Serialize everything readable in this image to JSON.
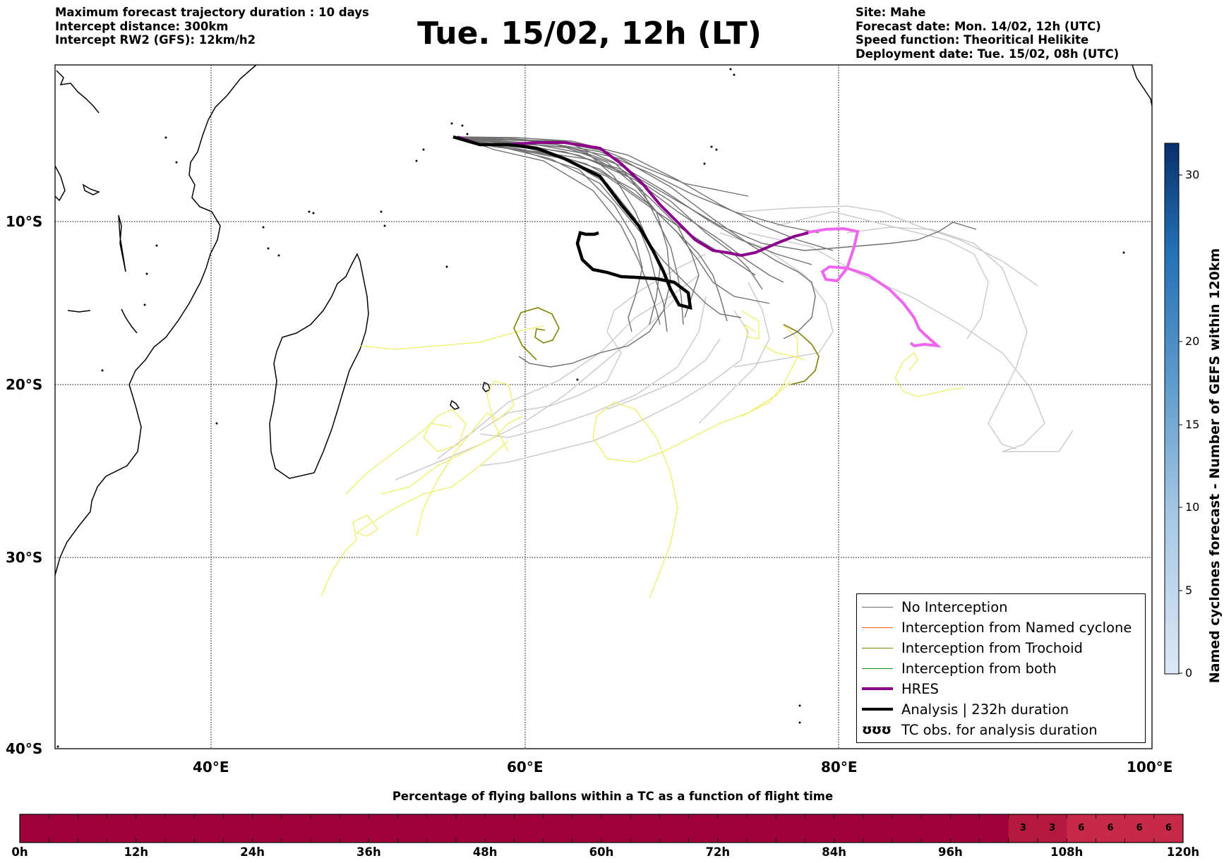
{
  "info_left": [
    "Maximum forecast trajectory duration : 10 days",
    "Intercept distance: 300km",
    "Intercept RW2 (GFS):  12km/h2"
  ],
  "title": "Tue. 15/02, 12h (LT)",
  "info_right": [
    "Site: Mahe",
    "Forecast date: Mon. 14/02, 12h (UTC)",
    "Speed function: Theoritical Helikite",
    "Deployment date: Tue. 15/02, 08h (UTC)"
  ],
  "map": {
    "lat_labels": [
      "10°S",
      "20°S",
      "30°S",
      "40°S"
    ],
    "lon_labels": [
      "40°E",
      "60°E",
      "80°E",
      "100°E"
    ],
    "lon_range": [
      30,
      100
    ],
    "lat_range": [
      -40,
      3
    ],
    "colors": {
      "no_interception": "#707070",
      "named": "#ff5a1f",
      "trochoid": "#808000",
      "both": "#228b22",
      "hres": "#8b008b",
      "hres_ext": "#ee66ee",
      "analysis": "#000000",
      "trajectory_light": "#cccccc",
      "yellow": "#eeee66"
    }
  },
  "legend": [
    {
      "label": "No Interception",
      "color": "#707070",
      "style": "thin"
    },
    {
      "label": "Interception from Named cyclone",
      "color": "#ff5a1f",
      "style": "thin"
    },
    {
      "label": "Interception from Trochoid",
      "color": "#808000",
      "style": "thin"
    },
    {
      "label": "Interception from both",
      "color": "#228b22",
      "style": "thin"
    },
    {
      "label": "HRES",
      "color": "#8b008b",
      "style": "thick"
    },
    {
      "label": "Analysis | 232h duration",
      "color": "#000000",
      "style": "thick"
    },
    {
      "label": "TC obs. for analysis duration",
      "symbol": "ʊʊʊ",
      "style": "symbol"
    }
  ],
  "colorbar": {
    "title": "Named cyclones forecast - Number of GEFS within 120km",
    "tick_labels": [
      "30",
      "20",
      "15",
      "10",
      "5",
      "0"
    ],
    "ticks": [
      30,
      20,
      15,
      10,
      5,
      0
    ],
    "max": 32,
    "color_low": "#dce8f6",
    "color_high": "#08306b"
  },
  "time_bar": {
    "title": "Percentage of flying ballons within a TC as a function of flight time",
    "tick_labels": [
      "0h",
      "12h",
      "24h",
      "36h",
      "48h",
      "60h",
      "72h",
      "84h",
      "96h",
      "108h",
      "120h"
    ],
    "bins": 40,
    "percentages": [
      0,
      0,
      0,
      0,
      0,
      0,
      0,
      0,
      0,
      0,
      0,
      0,
      0,
      0,
      0,
      0,
      0,
      0,
      0,
      0,
      0,
      0,
      0,
      0,
      0,
      0,
      0,
      0,
      0,
      0,
      0,
      0,
      0,
      0,
      3,
      3,
      6,
      6,
      6,
      6
    ],
    "cell_labels": [
      "3",
      "3",
      "6",
      "6",
      "6",
      "6"
    ],
    "color_zero": "#a0003a",
    "color_low": "#b5193f",
    "color_high": "#c62a47"
  }
}
